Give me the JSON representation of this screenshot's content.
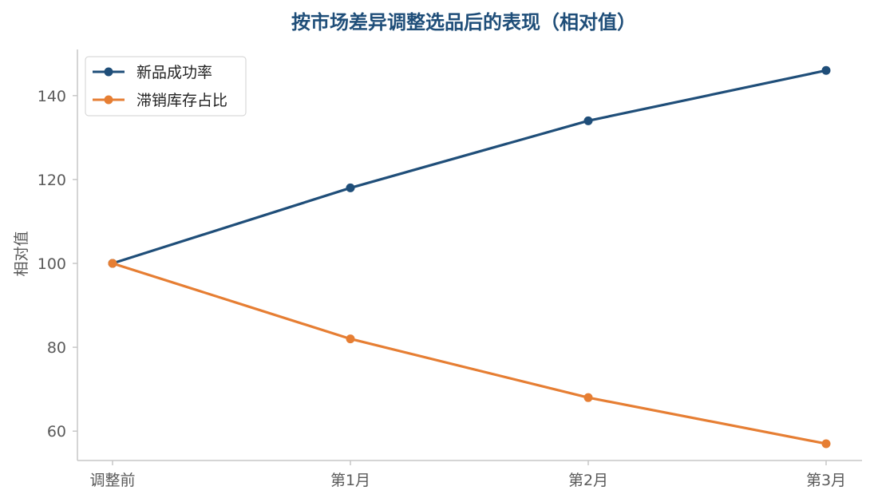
{
  "chart_data": {
    "type": "line",
    "title": "按市场差异调整选品后的表现（相对值）",
    "xlabel": "",
    "ylabel": "相对值",
    "categories": [
      "调整前",
      "第1月",
      "第2月",
      "第3月"
    ],
    "series": [
      {
        "name": "新品成功率",
        "values": [
          100,
          118,
          134,
          146
        ],
        "color": "#1f4e79"
      },
      {
        "name": "滞销库存占比",
        "values": [
          100,
          82,
          68,
          57
        ],
        "color": "#e67e33"
      }
    ],
    "ylim": [
      53,
      151
    ],
    "yticks": [
      60,
      80,
      100,
      120,
      140
    ],
    "grid": false,
    "legend": "top-left"
  }
}
